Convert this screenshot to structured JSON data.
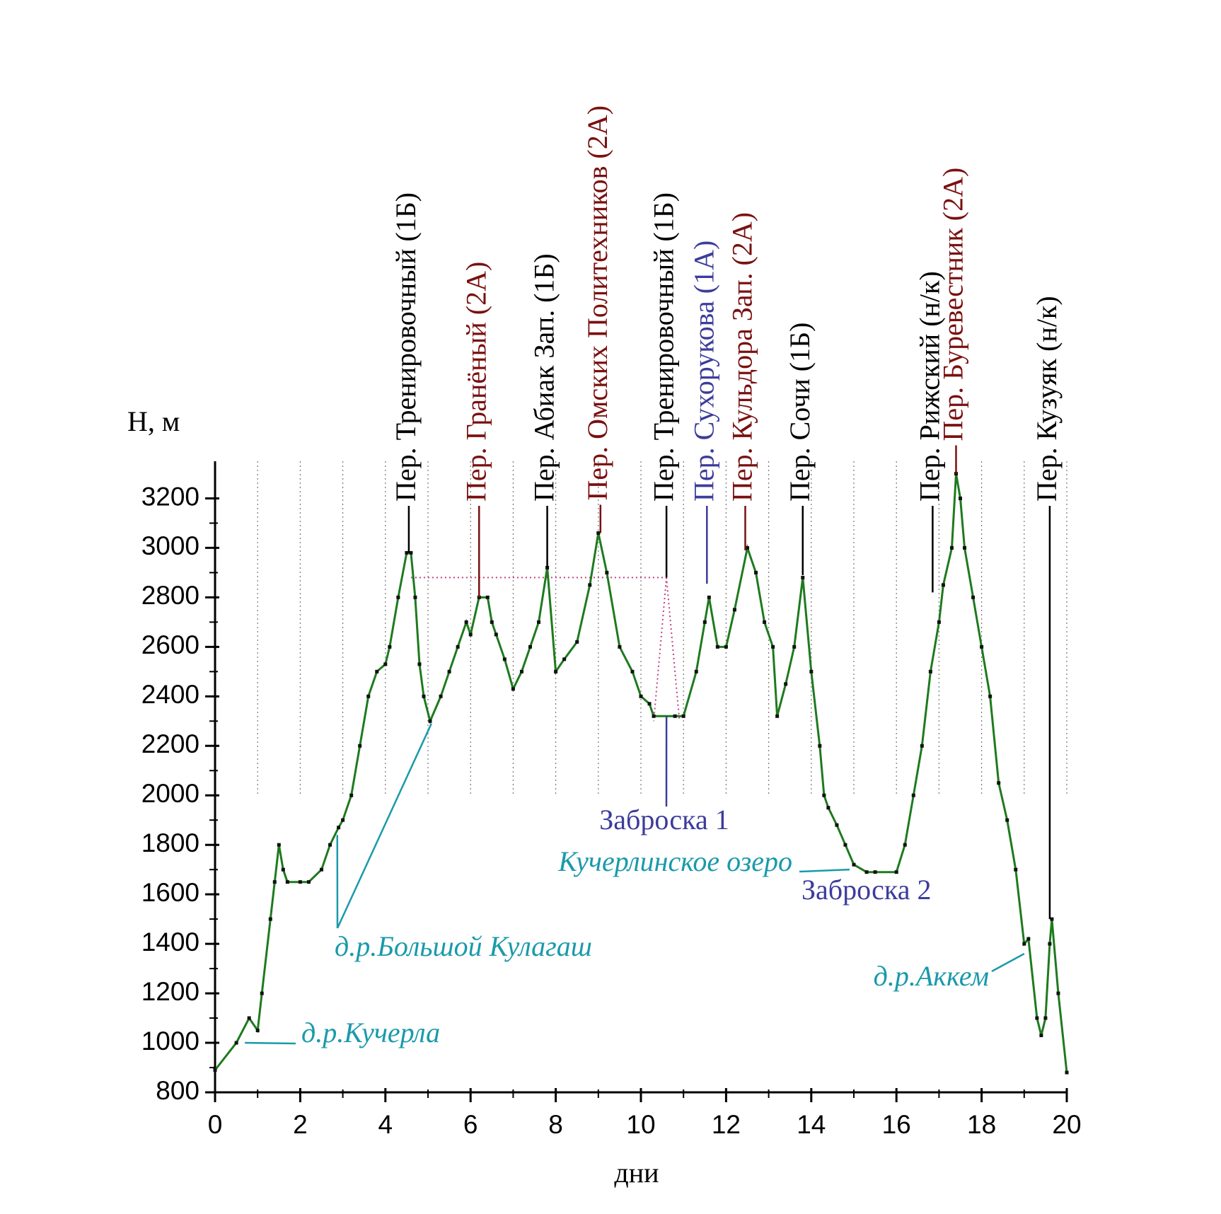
{
  "chart_data": {
    "type": "line",
    "ylabel": "H, м",
    "xlabel": "дни",
    "xlim": [
      0,
      20
    ],
    "ylim": [
      800,
      3350
    ],
    "xticks": [
      0,
      2,
      4,
      6,
      8,
      10,
      12,
      14,
      16,
      18,
      20
    ],
    "yticks": [
      800,
      1000,
      1200,
      1400,
      1600,
      1800,
      2000,
      2200,
      2400,
      2600,
      2800,
      3000,
      3200
    ],
    "grid": true,
    "grid_ymin": 2000,
    "line": {
      "color": "#1e7a1e",
      "x": [
        0,
        0.5,
        0.8,
        1.0,
        1.1,
        1.3,
        1.4,
        1.5,
        1.6,
        1.7,
        2.0,
        2.2,
        2.5,
        2.7,
        2.9,
        3.0,
        3.2,
        3.4,
        3.6,
        3.8,
        4.0,
        4.1,
        4.3,
        4.5,
        4.6,
        4.7,
        4.8,
        4.9,
        5.05,
        5.3,
        5.5,
        5.7,
        5.9,
        6.0,
        6.2,
        6.4,
        6.5,
        6.6,
        6.8,
        7.0,
        7.2,
        7.4,
        7.6,
        7.8,
        8.0,
        8.2,
        8.5,
        8.8,
        9.0,
        9.2,
        9.5,
        9.8,
        10.0,
        10.2,
        10.3,
        10.8,
        11.0,
        11.3,
        11.5,
        11.6,
        11.8,
        12.0,
        12.2,
        12.5,
        12.7,
        12.9,
        13.1,
        13.2,
        13.4,
        13.6,
        13.8,
        14.0,
        14.2,
        14.3,
        14.4,
        14.6,
        14.8,
        15.0,
        15.3,
        15.5,
        16.0,
        16.2,
        16.4,
        16.6,
        16.8,
        17.0,
        17.1,
        17.3,
        17.4,
        17.5,
        17.6,
        17.8,
        18.0,
        18.2,
        18.4,
        18.6,
        18.8,
        19.0,
        19.1,
        19.3,
        19.4,
        19.5,
        19.6,
        19.65,
        19.8,
        20.0
      ],
      "y": [
        890,
        1000,
        1100,
        1050,
        1200,
        1500,
        1650,
        1800,
        1700,
        1650,
        1650,
        1650,
        1700,
        1800,
        1870,
        1900,
        2000,
        2200,
        2400,
        2500,
        2530,
        2600,
        2800,
        2980,
        2980,
        2800,
        2530,
        2400,
        2300,
        2400,
        2500,
        2600,
        2700,
        2650,
        2800,
        2800,
        2700,
        2650,
        2550,
        2430,
        2500,
        2600,
        2700,
        2920,
        2500,
        2550,
        2620,
        2850,
        3060,
        2900,
        2600,
        2500,
        2400,
        2370,
        2320,
        2320,
        2320,
        2500,
        2700,
        2800,
        2600,
        2600,
        2750,
        3000,
        2900,
        2700,
        2600,
        2320,
        2450,
        2600,
        2880,
        2500,
        2200,
        2000,
        1950,
        1880,
        1800,
        1720,
        1690,
        1690,
        1690,
        1800,
        2000,
        2200,
        2500,
        2700,
        2850,
        3000,
        3300,
        3200,
        3000,
        2800,
        2600,
        2400,
        2050,
        1900,
        1700,
        1400,
        1420,
        1100,
        1030,
        1100,
        1400,
        1500,
        1200,
        880
      ]
    },
    "dotted": {
      "color": "#c04080",
      "x": [
        4.6,
        10.6,
        10.3,
        null,
        10.6,
        10.9
      ],
      "y": [
        2880,
        2880,
        2300,
        null,
        2880,
        2310
      ]
    },
    "passes": [
      {
        "text": "Пер. Тренировочный (1Б)",
        "x": 4.55,
        "y": 2980,
        "color": "#000000"
      },
      {
        "text": "Пер. Гранёный (2А)",
        "x": 6.2,
        "y": 2800,
        "color": "#7a1010"
      },
      {
        "text": "Пер. Абиак Зап. (1Б)",
        "x": 7.8,
        "y": 2920,
        "color": "#000000"
      },
      {
        "text": "Пер. Омских Политехников (2А)",
        "x": 9.05,
        "y": 3060,
        "color": "#7a1010"
      },
      {
        "text": "Пер. Тренировочный (1Б)",
        "x": 10.6,
        "y": 2880,
        "color": "#000000"
      },
      {
        "text": "Пер. Сухорукова (1А)",
        "x": 11.55,
        "y": 2855,
        "color": "#3c3c9c"
      },
      {
        "text": "Пер. Кульдора Зап. (2А)",
        "x": 12.45,
        "y": 2990,
        "color": "#7a1010"
      },
      {
        "text": "Пер. Сочи (1Б)",
        "x": 13.8,
        "y": 2890,
        "color": "#000000"
      },
      {
        "text": "Пер. Рижский (н/к)",
        "x": 16.85,
        "y": 2820,
        "color": "#000000"
      },
      {
        "text": "Пер. Буревестник (2А)",
        "x": 17.4,
        "y": 3300,
        "color": "#7a1010"
      },
      {
        "text": "Пер. Кузуяк (н/к)",
        "x": 19.6,
        "y": 1500,
        "color": "#000000"
      }
    ],
    "notes": [
      {
        "text": "д.р.Кучерла",
        "color": "#1a9aaa",
        "points": [
          {
            "x": 0.7,
            "y": 1000
          }
        ]
      },
      {
        "text": "д.р.Большой Кулагаш",
        "color": "#1a9aaa",
        "points": [
          {
            "x": 2.87,
            "y": 1840
          },
          {
            "x": 5.08,
            "y": 2290
          }
        ]
      },
      {
        "text": "Кучерлинское озеро",
        "color": "#1a9aaa",
        "points": [
          {
            "x": 14.9,
            "y": 1700
          }
        ]
      },
      {
        "text": "Заброска 1",
        "color": "#3c3c9c",
        "points": [
          {
            "x": 10.6,
            "y": 2320
          }
        ]
      },
      {
        "text": "Заброска 2",
        "color": "#3c3c9c",
        "points": []
      },
      {
        "text": "д.р.Аккем",
        "color": "#1a9aaa",
        "points": [
          {
            "x": 19.0,
            "y": 1360
          }
        ]
      }
    ]
  }
}
